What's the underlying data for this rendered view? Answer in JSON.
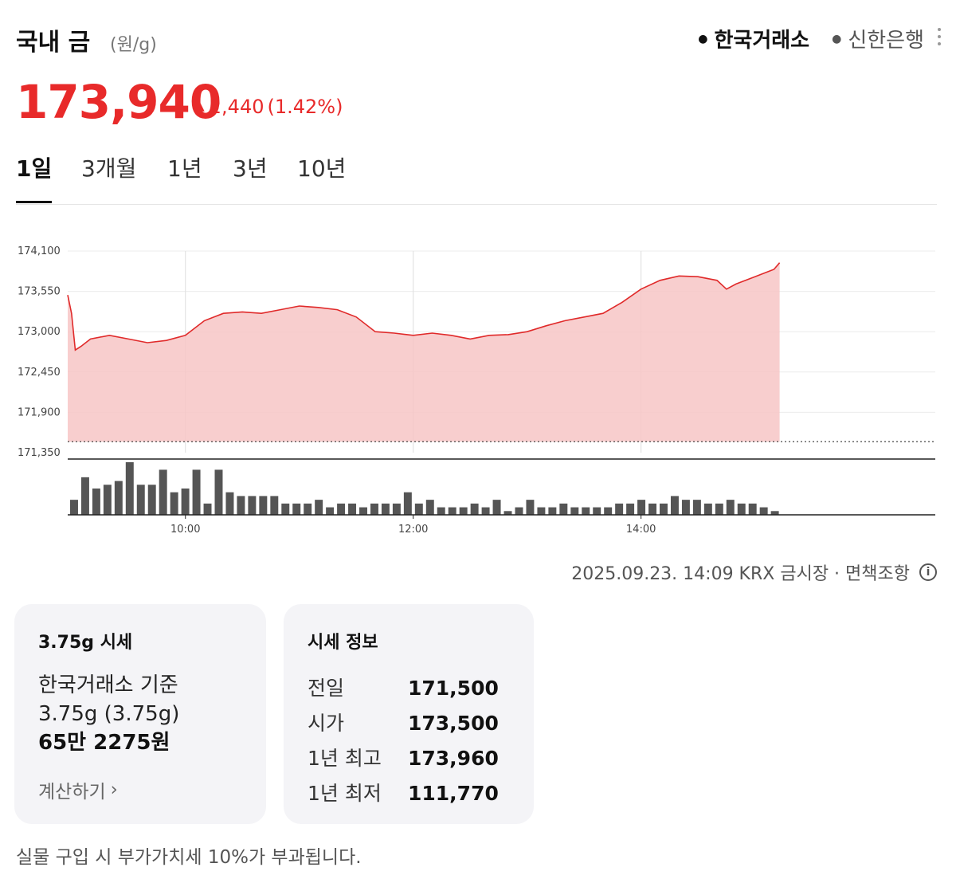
{
  "header": {
    "title": "국내 금",
    "unit": "(원/g)",
    "sources": [
      {
        "label": "한국거래소",
        "active": true
      },
      {
        "label": "신한은행",
        "active": false
      }
    ]
  },
  "quote": {
    "price": "173,940",
    "change": "2,440",
    "change_pct": "(1.42%)",
    "up_color": "#e82a2a"
  },
  "tabs": [
    "1일",
    "3개월",
    "1년",
    "3년",
    "10년"
  ],
  "active_tab": "1일",
  "chart_data": {
    "type": "area",
    "y_ticks": [
      "174,100",
      "173,550",
      "173,000",
      "172,450",
      "171,900",
      "171,350"
    ],
    "ylim": [
      171350,
      174100
    ],
    "x_ticks": [
      "10:00",
      "12:00",
      "14:00"
    ],
    "baseline": 171500,
    "series": [
      {
        "values": [
          [
            "08:58",
            173500
          ],
          [
            "09:00",
            173250
          ],
          [
            "09:02",
            172750
          ],
          [
            "09:05",
            172800
          ],
          [
            "09:10",
            172900
          ],
          [
            "09:20",
            172950
          ],
          [
            "09:30",
            172900
          ],
          [
            "09:40",
            172850
          ],
          [
            "09:50",
            172880
          ],
          [
            "10:00",
            172950
          ],
          [
            "10:10",
            173150
          ],
          [
            "10:20",
            173250
          ],
          [
            "10:30",
            173270
          ],
          [
            "10:40",
            173250
          ],
          [
            "10:50",
            173300
          ],
          [
            "11:00",
            173350
          ],
          [
            "11:10",
            173330
          ],
          [
            "11:20",
            173300
          ],
          [
            "11:30",
            173200
          ],
          [
            "11:40",
            173000
          ],
          [
            "11:50",
            172980
          ],
          [
            "12:00",
            172950
          ],
          [
            "12:10",
            172980
          ],
          [
            "12:20",
            172950
          ],
          [
            "12:30",
            172900
          ],
          [
            "12:40",
            172950
          ],
          [
            "12:50",
            172960
          ],
          [
            "13:00",
            173000
          ],
          [
            "13:10",
            173080
          ],
          [
            "13:20",
            173150
          ],
          [
            "13:30",
            173200
          ],
          [
            "13:40",
            173250
          ],
          [
            "13:50",
            173400
          ],
          [
            "14:00",
            173580
          ],
          [
            "14:10",
            173700
          ],
          [
            "14:20",
            173760
          ],
          [
            "14:30",
            173750
          ],
          [
            "14:40",
            173700
          ],
          [
            "14:45",
            173580
          ],
          [
            "14:50",
            173650
          ],
          [
            "15:00",
            173750
          ],
          [
            "15:05",
            173800
          ],
          [
            "15:10",
            173850
          ],
          [
            "15:13",
            173940
          ]
        ]
      }
    ],
    "volume": [
      4,
      10,
      7,
      8,
      9,
      14,
      8,
      8,
      12,
      6,
      7,
      12,
      3,
      12,
      6,
      5,
      5,
      5,
      5,
      3,
      3,
      3,
      4,
      2,
      3,
      3,
      2,
      3,
      3,
      3,
      6,
      3,
      4,
      2,
      2,
      2,
      3,
      2,
      4,
      1,
      2,
      4,
      2,
      2,
      3,
      2,
      2,
      2,
      2,
      3,
      3,
      4,
      3,
      3,
      5,
      4,
      4,
      3,
      3,
      4,
      3,
      3,
      2,
      1
    ],
    "colors": {
      "line": "#e02a2a",
      "fill": "#f7c6c6",
      "volume": "#555555"
    }
  },
  "timestamp": "2025.09.23. 14:09 KRX 금시장 · 면책조항",
  "card_gram": {
    "title": "3.75g 시세",
    "line1": "한국거래소 기준",
    "line2": "3.75g (3.75g)",
    "line3": "65만 2275원",
    "link": "계산하기"
  },
  "card_info": {
    "title": "시세 정보",
    "rows": [
      {
        "label": "전일",
        "value": "171,500"
      },
      {
        "label": "시가",
        "value": "173,500"
      },
      {
        "label": "1년 최고",
        "value": "173,960"
      },
      {
        "label": "1년 최저",
        "value": "111,770"
      }
    ]
  },
  "footer_note": "실물 구입 시 부가가치세 10%가 부과됩니다."
}
